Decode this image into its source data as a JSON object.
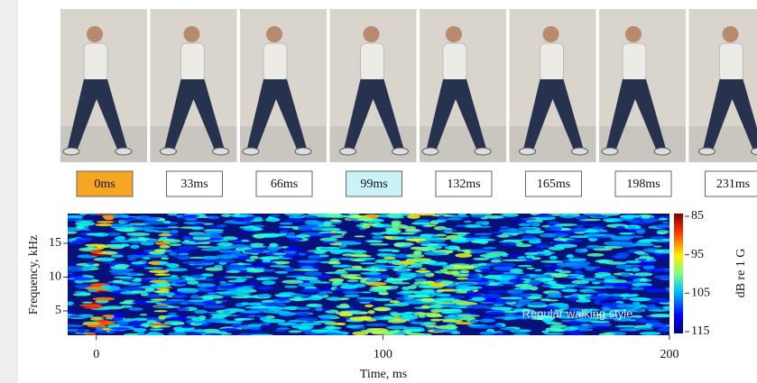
{
  "frames": [
    {
      "label": "0ms",
      "color": "#f5a623"
    },
    {
      "label": "33ms"
    },
    {
      "label": "66ms"
    },
    {
      "label": "99ms",
      "color": "#c9f3f6"
    },
    {
      "label": "132ms"
    },
    {
      "label": "165ms"
    },
    {
      "label": "198ms"
    },
    {
      "label": "231ms"
    }
  ],
  "chart_data": {
    "type": "heatmap",
    "x_label": "Time, ms",
    "y_label": "Frequency, kHz",
    "xlim": [
      -10,
      200
    ],
    "xticks": [
      0,
      100,
      200
    ],
    "ylim": [
      1.4,
      19.4
    ],
    "yticks": [
      5,
      10,
      15
    ],
    "annotation": "Regular walking style",
    "colorbar": {
      "label": "dB re 1 G",
      "lim": [
        85,
        115
      ],
      "ticks": [
        85,
        95,
        105,
        115
      ]
    }
  }
}
